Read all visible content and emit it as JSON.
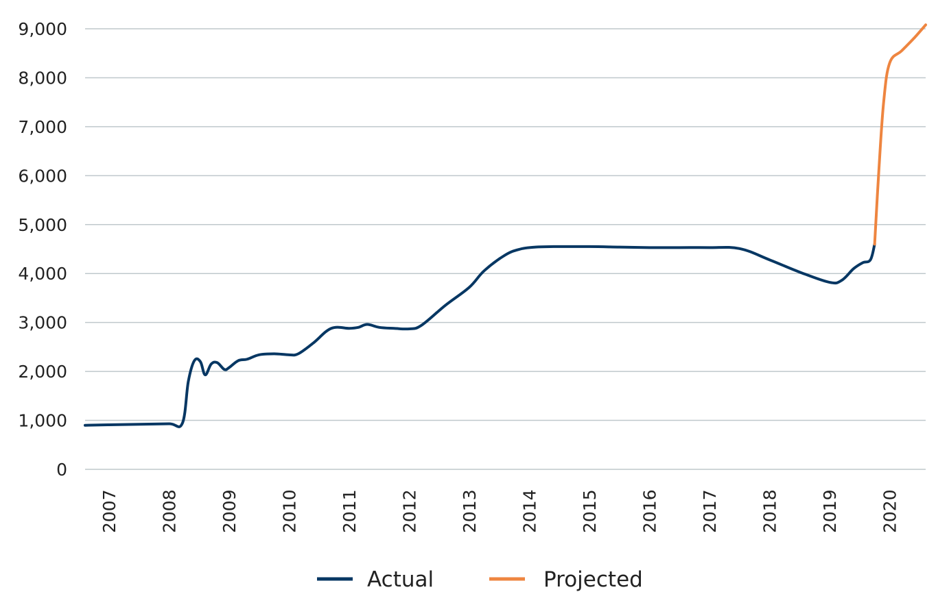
{
  "chart_data": {
    "type": "line",
    "title": "",
    "xlabel": "",
    "ylabel": "",
    "ylim": [
      0,
      9000
    ],
    "xlim": [
      2006.6,
      2020.6
    ],
    "grid": true,
    "legend_position": "bottom-center",
    "y_ticks": [
      {
        "value": 0,
        "label": "0"
      },
      {
        "value": 1000,
        "label": "1,000"
      },
      {
        "value": 2000,
        "label": "2,000"
      },
      {
        "value": 3000,
        "label": "3,000"
      },
      {
        "value": 4000,
        "label": "4,000"
      },
      {
        "value": 5000,
        "label": "5,000"
      },
      {
        "value": 6000,
        "label": "6,000"
      },
      {
        "value": 7000,
        "label": "7,000"
      },
      {
        "value": 8000,
        "label": "8,000"
      },
      {
        "value": 9000,
        "label": "9,000"
      }
    ],
    "x_ticks": [
      {
        "value": 2007,
        "label": "2007"
      },
      {
        "value": 2008,
        "label": "2008"
      },
      {
        "value": 2009,
        "label": "2009"
      },
      {
        "value": 2010,
        "label": "2010"
      },
      {
        "value": 2011,
        "label": "2011"
      },
      {
        "value": 2012,
        "label": "2012"
      },
      {
        "value": 2013,
        "label": "2013"
      },
      {
        "value": 2014,
        "label": "2014"
      },
      {
        "value": 2015,
        "label": "2015"
      },
      {
        "value": 2016,
        "label": "2016"
      },
      {
        "value": 2017,
        "label": "2017"
      },
      {
        "value": 2018,
        "label": "2018"
      },
      {
        "value": 2019,
        "label": "2019"
      },
      {
        "value": 2020,
        "label": "2020"
      }
    ],
    "series": [
      {
        "name": "Actual",
        "color": "#073763",
        "points": [
          [
            2006.6,
            900
          ],
          [
            2007.0,
            910
          ],
          [
            2007.5,
            920
          ],
          [
            2008.0,
            930
          ],
          [
            2008.22,
            940
          ],
          [
            2008.32,
            1800
          ],
          [
            2008.42,
            2220
          ],
          [
            2008.52,
            2200
          ],
          [
            2008.6,
            1930
          ],
          [
            2008.7,
            2150
          ],
          [
            2008.8,
            2180
          ],
          [
            2008.92,
            2040
          ],
          [
            2009.0,
            2080
          ],
          [
            2009.15,
            2220
          ],
          [
            2009.3,
            2250
          ],
          [
            2009.5,
            2340
          ],
          [
            2009.75,
            2360
          ],
          [
            2010.0,
            2340
          ],
          [
            2010.15,
            2360
          ],
          [
            2010.4,
            2580
          ],
          [
            2010.7,
            2880
          ],
          [
            2011.0,
            2880
          ],
          [
            2011.15,
            2900
          ],
          [
            2011.3,
            2960
          ],
          [
            2011.5,
            2900
          ],
          [
            2011.75,
            2880
          ],
          [
            2012.0,
            2870
          ],
          [
            2012.2,
            2940
          ],
          [
            2012.6,
            3350
          ],
          [
            2013.0,
            3720
          ],
          [
            2013.25,
            4060
          ],
          [
            2013.6,
            4380
          ],
          [
            2013.85,
            4500
          ],
          [
            2014.1,
            4540
          ],
          [
            2014.4,
            4550
          ],
          [
            2015.0,
            4550
          ],
          [
            2015.5,
            4540
          ],
          [
            2016.0,
            4530
          ],
          [
            2016.5,
            4530
          ],
          [
            2017.0,
            4530
          ],
          [
            2017.5,
            4510
          ],
          [
            2018.0,
            4280
          ],
          [
            2018.5,
            4030
          ],
          [
            2019.0,
            3820
          ],
          [
            2019.2,
            3860
          ],
          [
            2019.4,
            4100
          ],
          [
            2019.55,
            4220
          ],
          [
            2019.68,
            4280
          ],
          [
            2019.75,
            4600
          ]
        ]
      },
      {
        "name": "Projected",
        "color": "#ee8540",
        "points": [
          [
            2019.75,
            4600
          ],
          [
            2019.82,
            6100
          ],
          [
            2019.9,
            7500
          ],
          [
            2020.0,
            8300
          ],
          [
            2020.2,
            8550
          ],
          [
            2020.4,
            8800
          ],
          [
            2020.6,
            9080
          ]
        ]
      }
    ]
  }
}
